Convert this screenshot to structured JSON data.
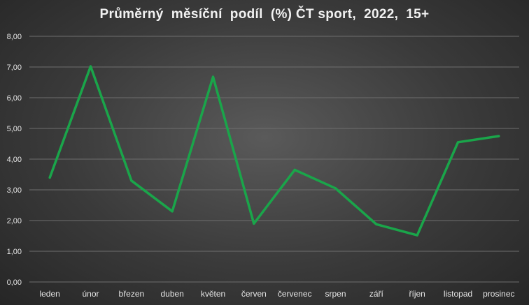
{
  "chart_data": {
    "type": "line",
    "title": "Průměrný  měsíční  podíl  (%) ČT sport,  2022,  15+",
    "xlabel": "",
    "ylabel": "",
    "ylim": [
      0,
      8
    ],
    "y_ticks": [
      "0,00",
      "1,00",
      "2,00",
      "3,00",
      "4,00",
      "5,00",
      "6,00",
      "7,00",
      "8,00"
    ],
    "grid": true,
    "line_color": "#1aa54a",
    "categories": [
      "leden",
      "únor",
      "březen",
      "duben",
      "květen",
      "červen",
      "červenec",
      "srpen",
      "září",
      "říjen",
      "listopad",
      "prosinec"
    ],
    "series": [
      {
        "values": [
          3.4,
          7.02,
          3.3,
          2.3,
          6.68,
          1.9,
          3.65,
          3.05,
          1.88,
          1.52,
          4.55,
          4.75
        ]
      }
    ]
  }
}
